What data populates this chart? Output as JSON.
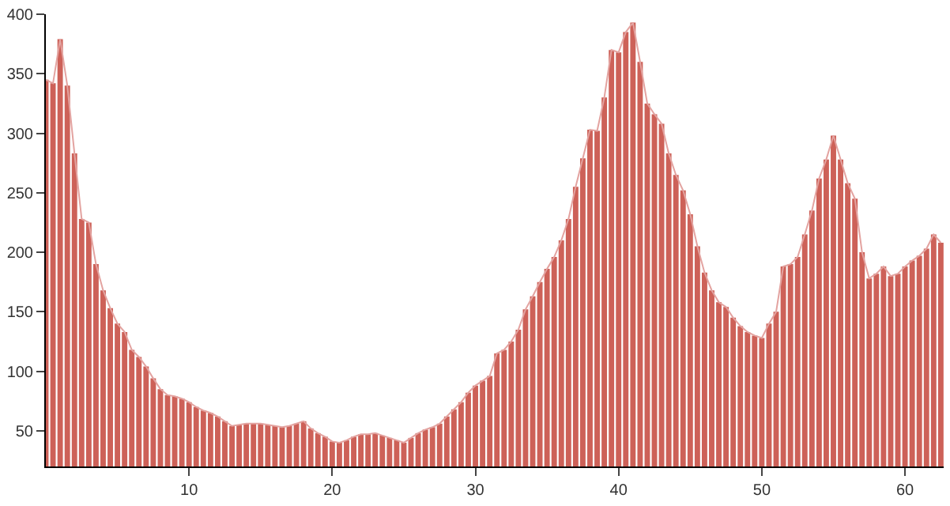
{
  "chart_data": {
    "type": "bar",
    "x": [
      0,
      0.5,
      1,
      1.5,
      2,
      2.5,
      3,
      3.5,
      4,
      4.5,
      5,
      5.5,
      6,
      6.5,
      7,
      7.5,
      8,
      8.5,
      9,
      9.5,
      10,
      10.5,
      11,
      11.5,
      12,
      12.5,
      13,
      13.5,
      14,
      14.5,
      15,
      15.5,
      16,
      16.5,
      17,
      17.5,
      18,
      18.5,
      19,
      19.5,
      20,
      20.5,
      21,
      21.5,
      22,
      22.5,
      23,
      23.5,
      24,
      24.5,
      25,
      25.5,
      26,
      26.5,
      27,
      27.5,
      28,
      28.5,
      29,
      29.5,
      30,
      30.5,
      31,
      31.5,
      32,
      32.5,
      33,
      33.5,
      34,
      34.5,
      35,
      35.5,
      36,
      36.5,
      37,
      37.5,
      38,
      38.5,
      39,
      39.5,
      40,
      40.5,
      41,
      41.5,
      42,
      42.5,
      43,
      43.5,
      44,
      44.5,
      45,
      45.5,
      46,
      46.5,
      47,
      47.5,
      48,
      48.5,
      49,
      49.5,
      50,
      50.5,
      51,
      51.5,
      52,
      52.5,
      53,
      53.5,
      54,
      54.5,
      55,
      55.5,
      56,
      56.5,
      57,
      57.5,
      58,
      58.5,
      59,
      59.5,
      60,
      60.5,
      61,
      61.5,
      62,
      62.5
    ],
    "series": [
      {
        "color": "#cd6158",
        "values": [
          345,
          342,
          379,
          340,
          283,
          228,
          225,
          190,
          168,
          153,
          140,
          133,
          118,
          112,
          104,
          94,
          85,
          80,
          79,
          77,
          74,
          70,
          67,
          65,
          62,
          58,
          54,
          55,
          56,
          56,
          56,
          55,
          54,
          53,
          54,
          56,
          58,
          52,
          48,
          45,
          41,
          40,
          42,
          45,
          47,
          47,
          48,
          46,
          44,
          42,
          40,
          44,
          48,
          51,
          53,
          56,
          62,
          68,
          74,
          82,
          88,
          92,
          96,
          115,
          118,
          125,
          135,
          152,
          163,
          175,
          186,
          196,
          210,
          228,
          255,
          279,
          303,
          302,
          330,
          370,
          368,
          385,
          393,
          360,
          325,
          316,
          308,
          283,
          265,
          252,
          232,
          205,
          183,
          168,
          158,
          154,
          145,
          138,
          133,
          130,
          128,
          140,
          150,
          188,
          190,
          196,
          215,
          235,
          262,
          278,
          298,
          278,
          258,
          245,
          200,
          178,
          182,
          188,
          180,
          182,
          188,
          193,
          197,
          203,
          215,
          208
        ]
      },
      {
        "type": "line",
        "color": "#e3a3a0",
        "values": [
          345,
          342,
          379,
          340,
          283,
          228,
          225,
          190,
          168,
          153,
          140,
          133,
          118,
          112,
          104,
          94,
          85,
          80,
          79,
          77,
          74,
          70,
          67,
          65,
          62,
          58,
          54,
          55,
          56,
          56,
          56,
          55,
          54,
          53,
          54,
          56,
          58,
          52,
          48,
          45,
          41,
          40,
          42,
          45,
          47,
          47,
          48,
          46,
          44,
          42,
          40,
          44,
          48,
          51,
          53,
          56,
          62,
          68,
          74,
          82,
          88,
          92,
          96,
          115,
          118,
          125,
          135,
          152,
          163,
          175,
          186,
          196,
          210,
          228,
          255,
          279,
          303,
          302,
          330,
          370,
          368,
          385,
          393,
          360,
          325,
          316,
          308,
          283,
          265,
          252,
          232,
          205,
          183,
          168,
          158,
          154,
          145,
          138,
          133,
          130,
          128,
          140,
          150,
          188,
          190,
          196,
          215,
          235,
          262,
          278,
          298,
          278,
          258,
          245,
          200,
          178,
          182,
          188,
          180,
          182,
          188,
          193,
          197,
          203,
          215,
          208
        ]
      }
    ],
    "xlim": [
      0,
      62.7
    ],
    "ylim": [
      20,
      400
    ],
    "xticks": [
      10,
      20,
      30,
      40,
      50,
      60
    ],
    "yticks": [
      50,
      100,
      150,
      200,
      250,
      300,
      350,
      400
    ]
  }
}
